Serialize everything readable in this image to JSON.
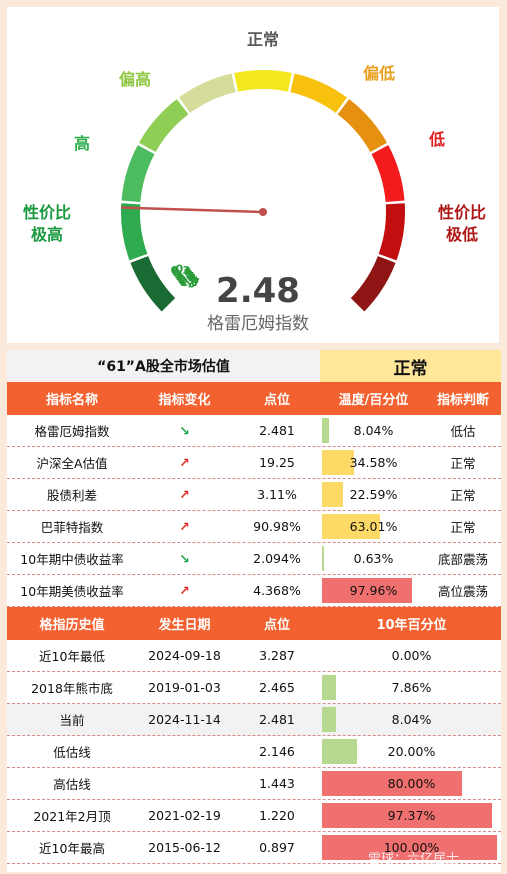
{
  "gauge": {
    "value_text": "2.48",
    "value": 2.48,
    "name": "格雷厄姆指数",
    "ticks": [
      "3",
      "2.7",
      "2.4",
      "2.1",
      "1.8",
      "1.5",
      "1.2",
      "0.9",
      "0.6",
      "0.3",
      "0"
    ],
    "zones": [
      {
        "label": "性价比\n极高",
        "color": "#1a9a3f"
      },
      {
        "label": "高",
        "color": "#2db04b"
      },
      {
        "label": "偏高",
        "color": "#8dc63f"
      },
      {
        "label": "正常",
        "color": "#5a5a5a"
      },
      {
        "label": "偏低",
        "color": "#e8a020"
      },
      {
        "label": "低",
        "color": "#e02020"
      },
      {
        "label": "性价比\n极低",
        "color": "#b01818"
      }
    ],
    "segment_colors": [
      "#1a6b33",
      "#2eaa4f",
      "#4cbd5e",
      "#8fce55",
      "#d6dc9a",
      "#f2e81d",
      "#f8c10e",
      "#e5900f",
      "#f31b1b",
      "#c20e0e",
      "#8f1414"
    ]
  },
  "section1": {
    "title": "“61”A股全市场估值",
    "status": "正常",
    "headers": [
      "指标名称",
      "指标变化",
      "点位",
      "温度/百分位",
      "指标判断"
    ],
    "rows": [
      {
        "name": "格雷厄姆指数",
        "change": "↘",
        "dir": "down",
        "value": "2.481",
        "pct_text": "8.04%",
        "pct": 8.04,
        "bar_color": "#b6d98f",
        "judgment": "低估"
      },
      {
        "name": "沪深全A估值",
        "change": "↗",
        "dir": "up",
        "value": "19.25",
        "pct_text": "34.58%",
        "pct": 34.58,
        "bar_color": "#ffd966",
        "judgment": "正常"
      },
      {
        "name": "股债利差",
        "change": "↗",
        "dir": "up",
        "value": "3.11%",
        "pct_text": "22.59%",
        "pct": 22.59,
        "bar_color": "#ffd966",
        "judgment": "正常"
      },
      {
        "name": "巴菲特指数",
        "change": "↗",
        "dir": "up",
        "value": "90.98%",
        "pct_text": "63.01%",
        "pct": 63.01,
        "bar_color": "#ffd966",
        "judgment": "正常"
      },
      {
        "name": "10年期中债收益率",
        "change": "↘",
        "dir": "down",
        "value": "2.094%",
        "pct_text": "0.63%",
        "pct": 0.63,
        "bar_color": "#b6d98f",
        "judgment": "底部震荡"
      },
      {
        "name": "10年期美债收益率",
        "change": "↗",
        "dir": "up",
        "value": "4.368%",
        "pct_text": "97.96%",
        "pct": 97.96,
        "bar_color": "#f07070",
        "judgment": "高位震荡"
      }
    ]
  },
  "section2": {
    "headers": [
      "格指历史值",
      "发生日期",
      "点位",
      "10年百分位"
    ],
    "rows": [
      {
        "name": "近10年最低",
        "date": "2024-09-18",
        "value": "3.287",
        "pct_text": "0.00%",
        "pct": 0,
        "bar_color": "#b6d98f",
        "highlight": false
      },
      {
        "name": "2018年熊市底",
        "date": "2019-01-03",
        "value": "2.465",
        "pct_text": "7.86%",
        "pct": 7.86,
        "bar_color": "#b6d98f",
        "highlight": false
      },
      {
        "name": "当前",
        "date": "2024-11-14",
        "value": "2.481",
        "pct_text": "8.04%",
        "pct": 8.04,
        "bar_color": "#b6d98f",
        "highlight": true
      },
      {
        "name": "低估线",
        "date": "",
        "value": "2.146",
        "pct_text": "20.00%",
        "pct": 20,
        "bar_color": "#b6d98f",
        "highlight": false
      },
      {
        "name": "高估线",
        "date": "",
        "value": "1.443",
        "pct_text": "80.00%",
        "pct": 80,
        "bar_color": "#f07070",
        "highlight": false
      },
      {
        "name": "2021年2月顶",
        "date": "2021-02-19",
        "value": "1.220",
        "pct_text": "97.37%",
        "pct": 97.37,
        "bar_color": "#f07070",
        "highlight": false
      },
      {
        "name": "近10年最高",
        "date": "2015-06-12",
        "value": "0.897",
        "pct_text": "100.00%",
        "pct": 100,
        "bar_color": "#f07070",
        "highlight": false
      }
    ]
  },
  "watermark": "雪球：六亿居士"
}
